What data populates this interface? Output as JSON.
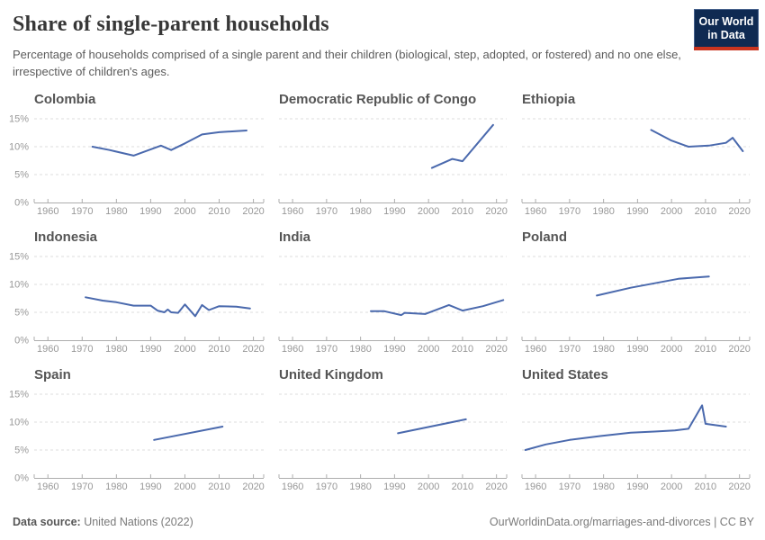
{
  "header": {
    "title": "Share of single-parent households",
    "subtitle": "Percentage of households comprised of a single parent and their children (biological, step, adopted, or fostered) and no one else, irrespective of children's ages.",
    "logo": {
      "line1": "Our World",
      "line2": "in Data"
    }
  },
  "footer": {
    "source_label": "Data source:",
    "source_value": " United Nations (2022)",
    "link": "OurWorldinData.org/marriages-and-divorces | CC BY"
  },
  "colors": {
    "line": "#4a69ad",
    "grid": "#dcdcdc",
    "axis": "#adadad",
    "tick_label": "#989898",
    "logo_bg": "#0f2a52",
    "logo_stripe": "#c9341f"
  },
  "axes": {
    "xlim": [
      1956,
      2023
    ],
    "ylim": [
      0,
      15
    ],
    "xticks": [
      1960,
      1970,
      1980,
      1990,
      2000,
      2010,
      2020
    ],
    "yticks": [
      0,
      5,
      10,
      15
    ],
    "ytick_suffix": "%",
    "grid_style": "dashed horizontal gridlines at 5/10/15, solid baseline at 0, y-axis labels on left column only"
  },
  "chart_data": [
    {
      "type": "line",
      "title": "Colombia",
      "points": [
        [
          1973,
          10.0
        ],
        [
          1978,
          9.4
        ],
        [
          1985,
          8.4
        ],
        [
          1993,
          10.2
        ],
        [
          1996,
          9.4
        ],
        [
          2000,
          10.6
        ],
        [
          2005,
          12.2
        ],
        [
          2010,
          12.6
        ],
        [
          2018,
          12.9
        ]
      ]
    },
    {
      "type": "line",
      "title": "Democratic Republic of Congo",
      "points": [
        [
          2001,
          6.2
        ],
        [
          2007,
          7.8
        ],
        [
          2010,
          7.4
        ],
        [
          2019,
          13.9
        ]
      ]
    },
    {
      "type": "line",
      "title": "Ethiopia",
      "points": [
        [
          1994,
          13.0
        ],
        [
          2000,
          11.1
        ],
        [
          2005,
          10.0
        ],
        [
          2011,
          10.2
        ],
        [
          2016,
          10.7
        ],
        [
          2018,
          11.6
        ],
        [
          2021,
          9.2
        ]
      ]
    },
    {
      "type": "line",
      "title": "Indonesia",
      "points": [
        [
          1971,
          7.7
        ],
        [
          1976,
          7.1
        ],
        [
          1980,
          6.8
        ],
        [
          1985,
          6.2
        ],
        [
          1990,
          6.2
        ],
        [
          1992,
          5.3
        ],
        [
          1994,
          5.0
        ],
        [
          1995,
          5.5
        ],
        [
          1996,
          5.0
        ],
        [
          1998,
          4.9
        ],
        [
          2000,
          6.4
        ],
        [
          2003,
          4.3
        ],
        [
          2005,
          6.3
        ],
        [
          2007,
          5.4
        ],
        [
          2010,
          6.1
        ],
        [
          2015,
          6.0
        ],
        [
          2019,
          5.7
        ]
      ]
    },
    {
      "type": "line",
      "title": "India",
      "points": [
        [
          1983,
          5.2
        ],
        [
          1987,
          5.2
        ],
        [
          1992,
          4.5
        ],
        [
          1993,
          4.9
        ],
        [
          1999,
          4.7
        ],
        [
          2006,
          6.3
        ],
        [
          2010,
          5.3
        ],
        [
          2016,
          6.1
        ],
        [
          2022,
          7.2
        ]
      ]
    },
    {
      "type": "line",
      "title": "Poland",
      "points": [
        [
          1978,
          8.0
        ],
        [
          1988,
          9.4
        ],
        [
          2002,
          11.0
        ],
        [
          2006,
          11.2
        ],
        [
          2011,
          11.4
        ]
      ]
    },
    {
      "type": "line",
      "title": "Spain",
      "points": [
        [
          1991,
          6.8
        ],
        [
          2011,
          9.2
        ]
      ]
    },
    {
      "type": "line",
      "title": "United Kingdom",
      "points": [
        [
          1991,
          8.0
        ],
        [
          2011,
          10.5
        ]
      ]
    },
    {
      "type": "line",
      "title": "United States",
      "points": [
        [
          1957,
          5.0
        ],
        [
          1963,
          6.0
        ],
        [
          1970,
          6.8
        ],
        [
          1979,
          7.5
        ],
        [
          1988,
          8.1
        ],
        [
          1995,
          8.3
        ],
        [
          2001,
          8.5
        ],
        [
          2005,
          8.8
        ],
        [
          2009,
          13.0
        ],
        [
          2010,
          9.7
        ],
        [
          2016,
          9.2
        ]
      ]
    }
  ]
}
